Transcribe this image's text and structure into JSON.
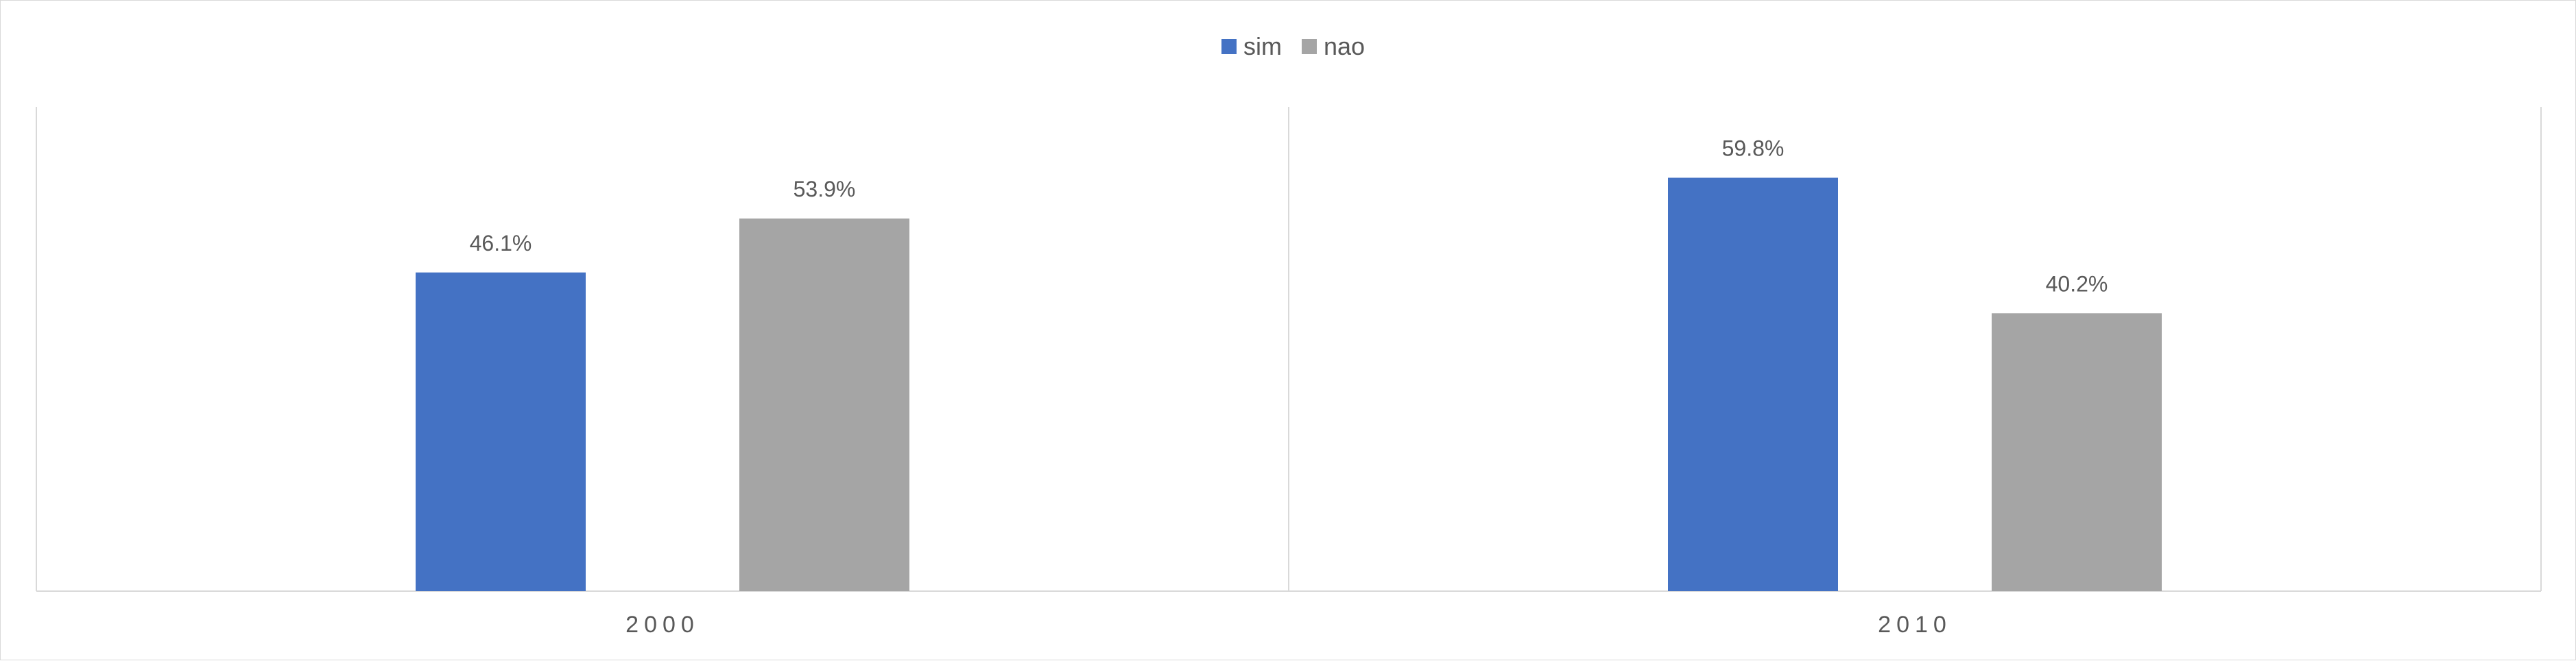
{
  "chart_data": {
    "type": "bar",
    "categories": [
      "2000",
      "2010"
    ],
    "series": [
      {
        "name": "sim",
        "values": [
          46.1,
          59.8
        ],
        "labels": [
          "46.1%",
          "59.8%"
        ],
        "color": "#4472C4"
      },
      {
        "name": "nao",
        "values": [
          53.9,
          40.2
        ],
        "labels": [
          "53.9%",
          "40.2%"
        ],
        "color": "#A5A5A5"
      }
    ],
    "title": "",
    "xlabel": "",
    "ylabel": "",
    "ylim": [
      0,
      60
    ],
    "legend": "top-center",
    "grid": false,
    "axis_color": "#d9d9d9"
  }
}
